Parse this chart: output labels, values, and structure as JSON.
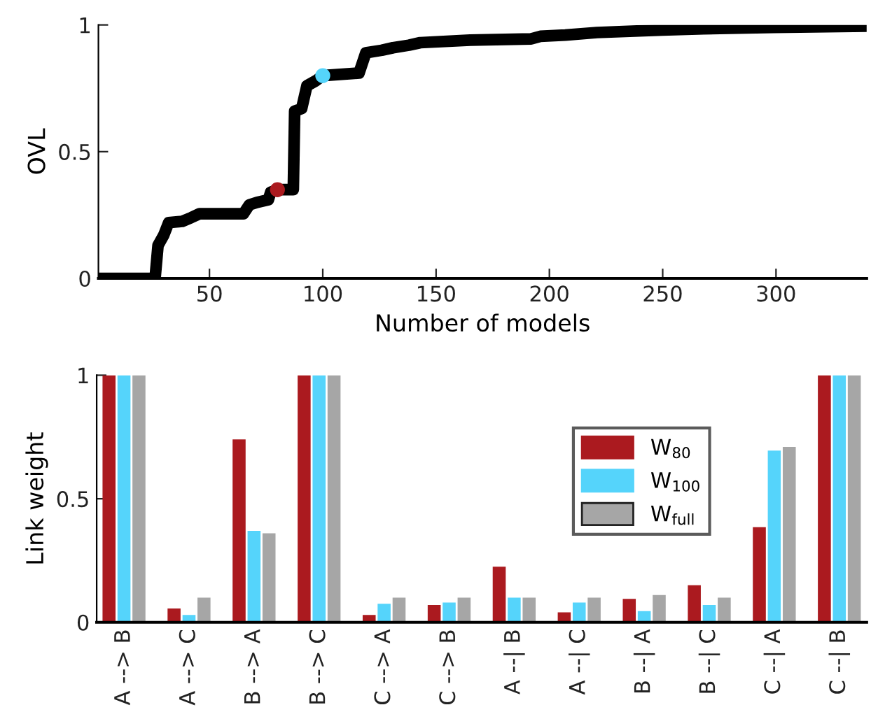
{
  "chart_data": [
    {
      "type": "line",
      "xlabel": "Number of models",
      "ylabel": "OVL",
      "xlim": [
        1,
        340
      ],
      "xticks": [
        50,
        100,
        150,
        200,
        250,
        300
      ],
      "ylim": [
        0,
        1
      ],
      "yticks": [
        0,
        0.5,
        1
      ],
      "grid": false,
      "series": [
        {
          "type": "line",
          "color": "#000000",
          "x": [
            1,
            26,
            27.3,
            29.8,
            32,
            38,
            42,
            45.6,
            65,
            67.6,
            71,
            76,
            77,
            80,
            87,
            87.6,
            90.7,
            93,
            97,
            100,
            116,
            119,
            126,
            131,
            138,
            143,
            165,
            192,
            196,
            207,
            221,
            250,
            268,
            299,
            340
          ],
          "values": [
            0,
            0,
            0.13,
            0.17,
            0.22,
            0.225,
            0.24,
            0.255,
            0.255,
            0.29,
            0.3,
            0.31,
            0.34,
            0.35,
            0.35,
            0.66,
            0.67,
            0.76,
            0.78,
            0.8,
            0.81,
            0.89,
            0.9,
            0.91,
            0.92,
            0.93,
            0.94,
            0.945,
            0.955,
            0.96,
            0.97,
            0.98,
            0.985,
            0.99,
            0.995
          ]
        },
        {
          "type": "scatter",
          "color": "#ab1a1f",
          "marker": "circle",
          "x": [
            80
          ],
          "values": [
            0.35
          ]
        },
        {
          "type": "scatter",
          "color": "#55d4fb",
          "marker": "circle",
          "x": [
            100
          ],
          "values": [
            0.8
          ]
        }
      ]
    },
    {
      "type": "bar",
      "ylabel": "Link weight",
      "ylim": [
        0,
        1
      ],
      "yticks": [
        0,
        0.5,
        1
      ],
      "grid": false,
      "legend": "top right",
      "categories": [
        "A --> B",
        "A --> C",
        "B --> A",
        "B --> C",
        "C --> A",
        "C --> B",
        "A --| B",
        "A --| C",
        "B --| A",
        "B --| C",
        "C --| A",
        "C --| B"
      ],
      "series": [
        {
          "name": "W$_{80}$",
          "color": "#ab1a1f",
          "values": [
            1,
            0.056,
            0.74,
            1,
            0.03,
            0.07,
            0.225,
            0.04,
            0.095,
            0.15,
            0.385,
            1
          ]
        },
        {
          "name": "W$_{100}$",
          "color": "#55d4fb",
          "values": [
            1,
            0.03,
            0.37,
            1,
            0.075,
            0.08,
            0.1,
            0.08,
            0.045,
            0.07,
            0.695,
            1
          ]
        },
        {
          "name": "W$_{full}$",
          "color": "#a6a6a6",
          "values": [
            1,
            0.1,
            0.36,
            1,
            0.1,
            0.1,
            0.1,
            0.1,
            0.11,
            0.1,
            0.71,
            1
          ]
        }
      ]
    }
  ]
}
